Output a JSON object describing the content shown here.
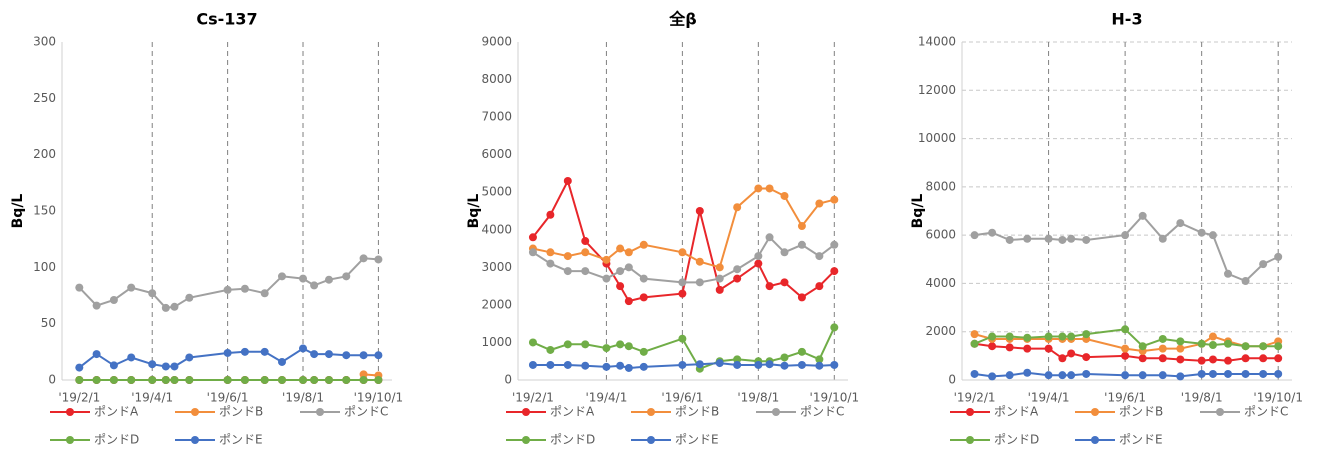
{
  "chart_data": [
    {
      "type": "line",
      "title": "Cs-137",
      "y_label": "Bq/L",
      "x": [
        "2019-02-01",
        "2019-02-15",
        "2019-03-01",
        "2019-03-15",
        "2019-04-01",
        "2019-04-12",
        "2019-04-19",
        "2019-05-01",
        "2019-06-01",
        "2019-06-15",
        "2019-07-01",
        "2019-07-15",
        "2019-08-01",
        "2019-08-10",
        "2019-08-22",
        "2019-09-05",
        "2019-09-19",
        "2019-10-01"
      ],
      "xlim": [
        "2019-01-18",
        "2019-10-12"
      ],
      "xticks": [
        {
          "value": "2019-02-01",
          "label": "'19/2/1"
        },
        {
          "value": "2019-04-01",
          "label": "'19/4/1"
        },
        {
          "value": "2019-06-01",
          "label": "'19/6/1"
        },
        {
          "value": "2019-08-01",
          "label": "'19/8/1"
        },
        {
          "value": "2019-10-01",
          "label": "'19/10/1"
        }
      ],
      "ylim": [
        0,
        300
      ],
      "yticks": [
        0,
        50,
        100,
        150,
        200,
        250,
        300
      ],
      "ygrid": false,
      "xgrid": true,
      "series": [
        {
          "name": "ポンドA",
          "color": "#e8262a",
          "values": [
            0,
            0,
            0,
            0,
            0,
            0,
            0,
            0,
            0,
            0,
            0,
            0,
            0,
            0,
            0,
            0,
            0,
            0
          ]
        },
        {
          "name": "ポンドB",
          "color": "#f28e3c",
          "values": [
            null,
            null,
            null,
            null,
            null,
            null,
            null,
            null,
            null,
            null,
            null,
            null,
            null,
            null,
            null,
            null,
            5,
            4
          ]
        },
        {
          "name": "ポンドC",
          "color": "#a0a0a0",
          "values": [
            82,
            66,
            71,
            82,
            77,
            64,
            65,
            73,
            80,
            81,
            77,
            92,
            90,
            84,
            89,
            92,
            108,
            107
          ]
        },
        {
          "name": "ポンドD",
          "color": "#70ad47",
          "values": [
            0,
            0,
            0,
            0,
            0,
            0,
            0,
            0,
            0,
            0,
            0,
            0,
            0,
            0,
            0,
            0,
            0,
            0
          ]
        },
        {
          "name": "ポンドE",
          "color": "#4472c4",
          "values": [
            11,
            23,
            13,
            20,
            14,
            12,
            12,
            20,
            24,
            25,
            25,
            16,
            28,
            23,
            23,
            22,
            22,
            22
          ]
        }
      ]
    },
    {
      "type": "line",
      "title": "全β",
      "y_label": "Bq/L",
      "x": [
        "2019-02-01",
        "2019-02-15",
        "2019-03-01",
        "2019-03-15",
        "2019-04-01",
        "2019-04-12",
        "2019-04-19",
        "2019-05-01",
        "2019-06-01",
        "2019-06-15",
        "2019-07-01",
        "2019-07-15",
        "2019-08-01",
        "2019-08-10",
        "2019-08-22",
        "2019-09-05",
        "2019-09-19",
        "2019-10-01"
      ],
      "xlim": [
        "2019-01-20",
        "2019-10-12"
      ],
      "xticks": [
        {
          "value": "2019-02-01",
          "label": "'19/2/1"
        },
        {
          "value": "2019-04-01",
          "label": "'19/4/1"
        },
        {
          "value": "2019-06-01",
          "label": "'19/6/1"
        },
        {
          "value": "2019-08-01",
          "label": "'19/8/1"
        },
        {
          "value": "2019-10-01",
          "label": "'19/10/1"
        }
      ],
      "ylim": [
        0,
        9000
      ],
      "yticks": [
        0,
        1000,
        2000,
        3000,
        4000,
        5000,
        6000,
        7000,
        8000,
        9000
      ],
      "ygrid": false,
      "xgrid": true,
      "series": [
        {
          "name": "ポンドA",
          "color": "#e8262a",
          "values": [
            3800,
            4400,
            5300,
            3700,
            3100,
            2500,
            2100,
            2200,
            2300,
            4500,
            2400,
            2700,
            3100,
            2500,
            2600,
            2200,
            2500,
            2900
          ]
        },
        {
          "name": "ポンドB",
          "color": "#f28e3c",
          "values": [
            3500,
            3400,
            3300,
            3400,
            3200,
            3500,
            3400,
            3600,
            3400,
            3150,
            3000,
            4600,
            5100,
            5100,
            4900,
            4100,
            4700,
            4800
          ]
        },
        {
          "name": "ポンドC",
          "color": "#a0a0a0",
          "values": [
            3400,
            3100,
            2900,
            2900,
            2700,
            2900,
            3000,
            2700,
            2600,
            2600,
            2700,
            2950,
            3300,
            3800,
            3400,
            3600,
            3300,
            3600
          ]
        },
        {
          "name": "ポンドD",
          "color": "#70ad47",
          "values": [
            1000,
            800,
            950,
            950,
            850,
            950,
            900,
            750,
            1100,
            300,
            500,
            550,
            500,
            500,
            600,
            750,
            550,
            1400
          ]
        },
        {
          "name": "ポンドE",
          "color": "#4472c4",
          "values": [
            400,
            400,
            400,
            380,
            350,
            380,
            320,
            350,
            400,
            420,
            450,
            400,
            400,
            420,
            380,
            400,
            380,
            400
          ]
        }
      ]
    },
    {
      "type": "line",
      "title": "H-3",
      "y_label": "Bq/L",
      "x": [
        "2019-02-01",
        "2019-02-15",
        "2019-03-01",
        "2019-03-15",
        "2019-04-01",
        "2019-04-12",
        "2019-04-19",
        "2019-05-01",
        "2019-06-01",
        "2019-06-15",
        "2019-07-01",
        "2019-07-15",
        "2019-08-01",
        "2019-08-10",
        "2019-08-22",
        "2019-09-05",
        "2019-09-19",
        "2019-10-01"
      ],
      "xlim": [
        "2019-01-22",
        "2019-10-12"
      ],
      "xticks": [
        {
          "value": "2019-02-01",
          "label": "'19/2/1"
        },
        {
          "value": "2019-04-01",
          "label": "'19/4/1"
        },
        {
          "value": "2019-06-01",
          "label": "'19/6/1"
        },
        {
          "value": "2019-08-01",
          "label": "'19/8/1"
        },
        {
          "value": "2019-10-01",
          "label": "'19/10/1"
        }
      ],
      "ylim": [
        0,
        14000
      ],
      "yticks": [
        0,
        2000,
        4000,
        6000,
        8000,
        10000,
        12000,
        14000
      ],
      "ygrid": true,
      "xgrid": true,
      "series": [
        {
          "name": "ポンドA",
          "color": "#e8262a",
          "values": [
            1500,
            1400,
            1350,
            1300,
            1300,
            900,
            1100,
            950,
            1000,
            900,
            900,
            850,
            800,
            850,
            800,
            900,
            900,
            900
          ]
        },
        {
          "name": "ポンドB",
          "color": "#f28e3c",
          "values": [
            1900,
            1700,
            1700,
            1700,
            1700,
            1700,
            1700,
            1700,
            1300,
            1200,
            1300,
            1300,
            1500,
            1800,
            1600,
            1400,
            1400,
            1600
          ]
        },
        {
          "name": "ポンドC",
          "color": "#a0a0a0",
          "values": [
            6000,
            6100,
            5800,
            5850,
            5850,
            5800,
            5850,
            5800,
            6000,
            6800,
            5850,
            6500,
            6100,
            6000,
            4400,
            4100,
            4800,
            5100
          ]
        },
        {
          "name": "ポンドD",
          "color": "#70ad47",
          "values": [
            1500,
            1800,
            1800,
            1750,
            1800,
            1800,
            1800,
            1900,
            2100,
            1400,
            1700,
            1600,
            1500,
            1450,
            1500,
            1400,
            1400,
            1400
          ]
        },
        {
          "name": "ポンドE",
          "color": "#4472c4",
          "values": [
            250,
            150,
            200,
            300,
            200,
            200,
            200,
            250,
            200,
            200,
            200,
            150,
            250,
            250,
            250,
            250,
            250,
            250
          ]
        }
      ]
    }
  ]
}
